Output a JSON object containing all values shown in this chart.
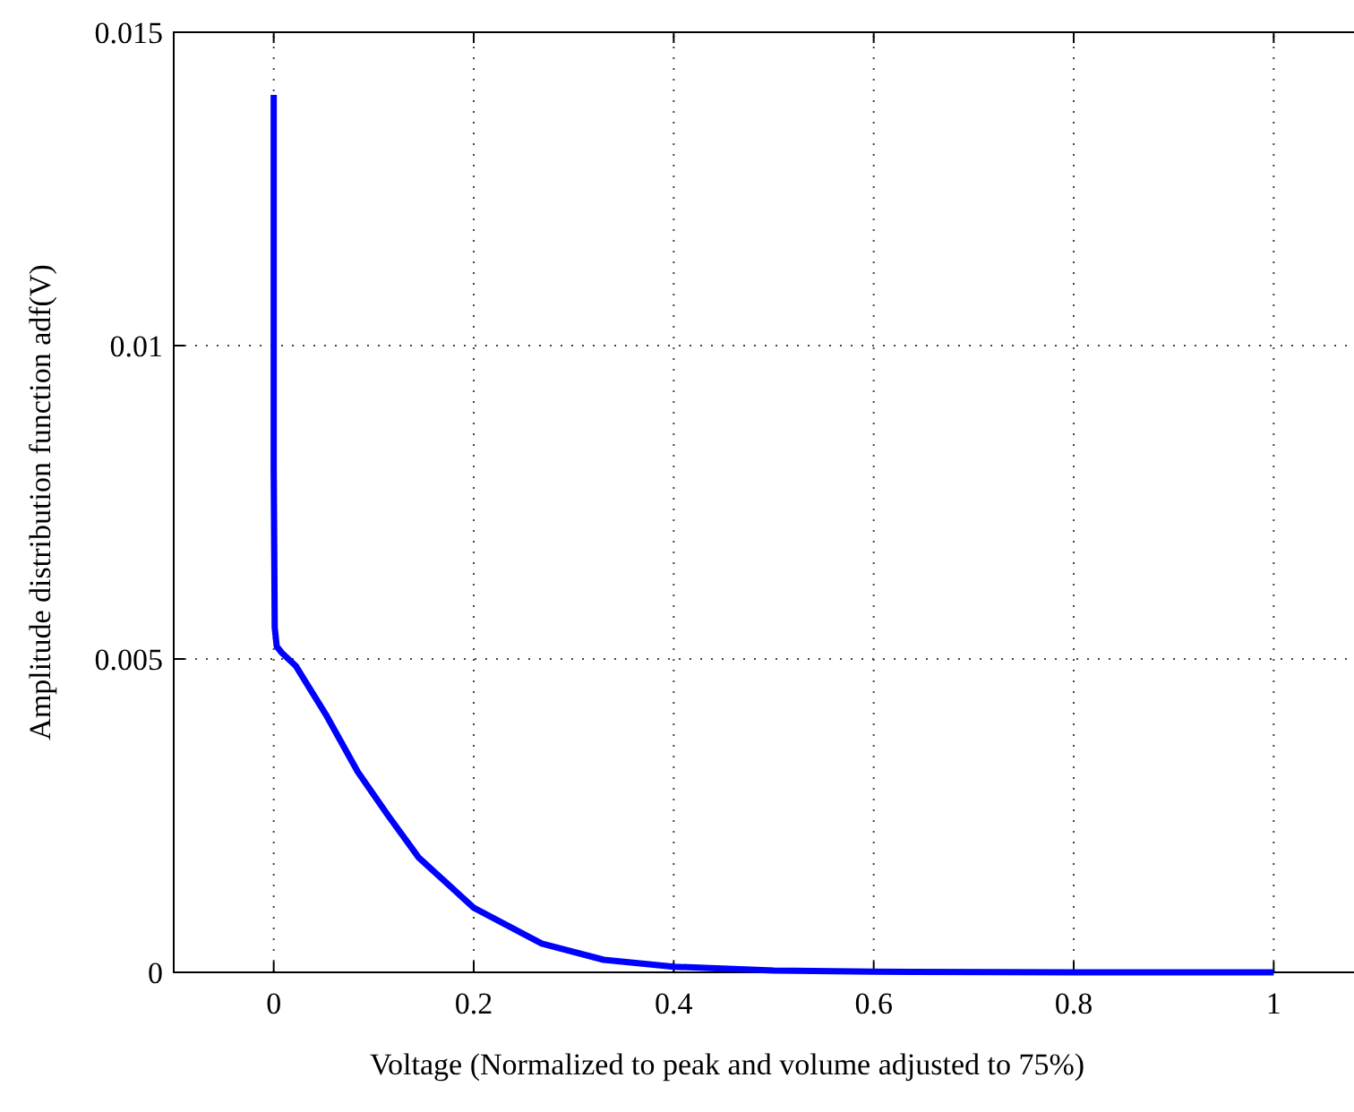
{
  "chart_data": {
    "type": "line",
    "xlabel": "Voltage (Normalized to peak and volume adjusted to 75%)",
    "ylabel": "Amplitude distribution function adf(V)",
    "xlim": [
      -0.1,
      1.1
    ],
    "ylim": [
      0,
      0.015
    ],
    "xticks": [
      0,
      0.2,
      0.4,
      0.6,
      0.8,
      1
    ],
    "yticks": [
      0,
      0.005,
      0.01,
      0.015
    ],
    "grid": true,
    "series": [
      {
        "color": "#0000ff",
        "x": [
          0,
          0,
          0.001,
          0.003,
          0.008,
          0.022,
          0.053,
          0.084,
          0.114,
          0.145,
          0.2,
          0.268,
          0.33,
          0.4,
          0.5,
          0.6,
          0.8,
          1
        ],
        "values": [
          0.014,
          0.008,
          0.0055,
          0.0052,
          0.0051,
          0.00489,
          0.00409,
          0.0032,
          0.00251,
          0.00183,
          0.00103,
          0.00046,
          0.0002,
          9e-05,
          3e-05,
          1e-05,
          0,
          0
        ]
      }
    ]
  }
}
